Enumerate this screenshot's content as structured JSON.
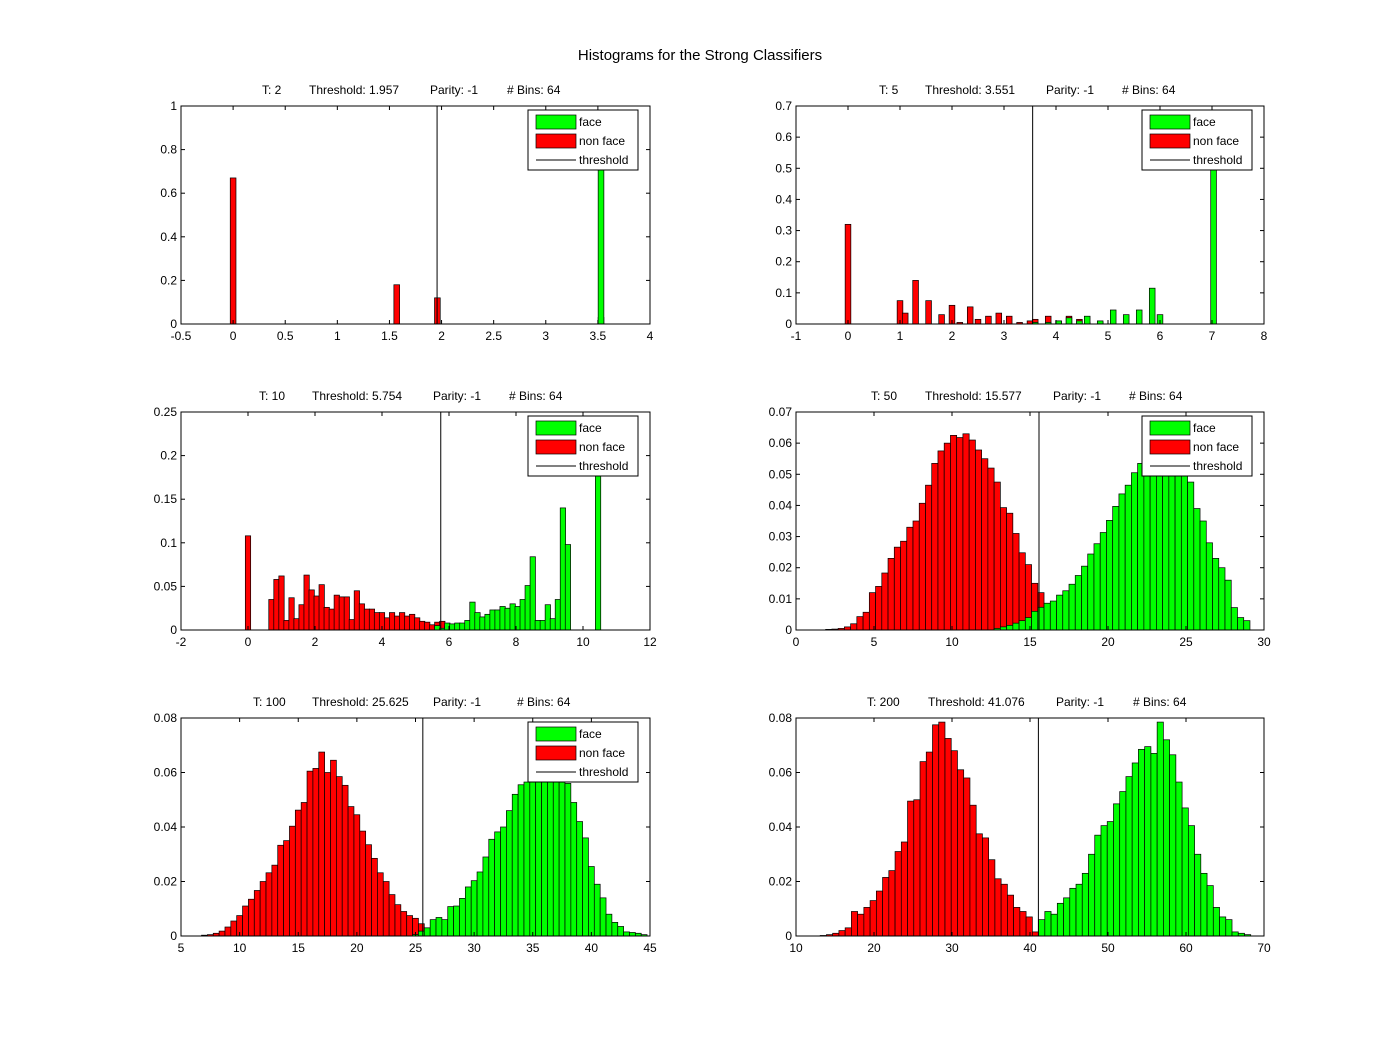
{
  "figure": {
    "title": "Histograms for the Strong Classifiers"
  },
  "legend_labels": [
    "face",
    "non face",
    "threshold"
  ],
  "colors": {
    "face": "#00ff00",
    "non_face": "#ff0000",
    "threshold": "#000000",
    "bar_edge": "#000000"
  },
  "chart_data": [
    {
      "type": "bar",
      "header": {
        "t": "T: 2",
        "threshold": "Threshold: 1.957",
        "parity": "Parity: -1",
        "bins": "# Bins: 64"
      },
      "threshold_value": 1.957,
      "xlim": [
        -0.5,
        4
      ],
      "ylim": [
        0,
        1
      ],
      "xticks": [
        -0.5,
        0,
        0.5,
        1,
        1.5,
        2,
        2.5,
        3,
        3.5,
        4
      ],
      "xtick_labels": [
        "-0.5",
        "0",
        "0.5",
        "1",
        "1.5",
        "2",
        "2.5",
        "3",
        "3.5",
        "4"
      ],
      "yticks": [
        0,
        0.2,
        0.4,
        0.6,
        0.8,
        1
      ],
      "ytick_labels": [
        "0",
        "0.2",
        "0.4",
        "0.6",
        "0.8",
        "1"
      ],
      "legend": true,
      "bin_width": 0.055,
      "series": [
        {
          "name": "non face",
          "x": [
            0,
            1.57,
            1.96,
            3.53
          ],
          "values": [
            0.67,
            0.18,
            0.12,
            0.03
          ]
        },
        {
          "name": "face",
          "x": [
            3.53
          ],
          "values": [
            0.72
          ]
        }
      ]
    },
    {
      "type": "bar",
      "header": {
        "t": "T: 5",
        "threshold": "Threshold: 3.551",
        "parity": "Parity: -1",
        "bins": "# Bins: 64"
      },
      "threshold_value": 3.551,
      "xlim": [
        -1,
        8
      ],
      "ylim": [
        0,
        0.7
      ],
      "xticks": [
        -1,
        0,
        1,
        2,
        3,
        4,
        5,
        6,
        7,
        8
      ],
      "xtick_labels": [
        "-1",
        "0",
        "1",
        "2",
        "3",
        "4",
        "5",
        "6",
        "7",
        "8"
      ],
      "yticks": [
        0,
        0.1,
        0.2,
        0.3,
        0.4,
        0.5,
        0.6,
        0.7
      ],
      "ytick_labels": [
        "0",
        "0.1",
        "0.2",
        "0.3",
        "0.4",
        "0.5",
        "0.6",
        "0.7"
      ],
      "legend": true,
      "bin_width": 0.11,
      "series": [
        {
          "name": "non face",
          "x": [
            0,
            1.0,
            1.1,
            1.3,
            1.55,
            1.8,
            2.0,
            2.15,
            2.35,
            2.5,
            2.7,
            2.9,
            3.1,
            3.3,
            3.5,
            3.6,
            3.85,
            4.05,
            4.25,
            4.45,
            4.6,
            4.85
          ],
          "values": [
            0.32,
            0.075,
            0.035,
            0.14,
            0.075,
            0.03,
            0.06,
            0.005,
            0.055,
            0.015,
            0.025,
            0.035,
            0.025,
            0.005,
            0.01,
            0.015,
            0.025,
            0.01,
            0.025,
            0.015,
            0.005,
            0.005
          ]
        },
        {
          "name": "face",
          "x": [
            3.6,
            3.85,
            4.05,
            4.25,
            4.45,
            4.6,
            4.85,
            5.1,
            5.35,
            5.6,
            5.85,
            6.0,
            7.03
          ],
          "values": [
            0.005,
            0.005,
            0.01,
            0.02,
            0.01,
            0.025,
            0.01,
            0.045,
            0.03,
            0.045,
            0.115,
            0.03,
            0.52
          ]
        }
      ]
    },
    {
      "type": "bar",
      "header": {
        "t": "T: 10",
        "threshold": "Threshold: 5.754",
        "parity": "Parity: -1",
        "bins": "# Bins: 64"
      },
      "threshold_value": 5.754,
      "xlim": [
        -2,
        12
      ],
      "ylim": [
        0,
        0.25
      ],
      "xticks": [
        -2,
        0,
        2,
        4,
        6,
        8,
        10,
        12
      ],
      "xtick_labels": [
        "-2",
        "0",
        "2",
        "4",
        "6",
        "8",
        "10",
        "12"
      ],
      "yticks": [
        0,
        0.05,
        0.1,
        0.15,
        0.2,
        0.25
      ],
      "ytick_labels": [
        "0",
        "0.05",
        "0.1",
        "0.15",
        "0.2",
        "0.25"
      ],
      "legend": true,
      "bin_width": 0.16,
      "series": [
        {
          "name": "non face",
          "x": [
            0,
            0.7,
            0.85,
            1.0,
            1.15,
            1.3,
            1.45,
            1.6,
            1.75,
            1.9,
            2.05,
            2.2,
            2.35,
            2.5,
            2.65,
            2.8,
            2.95,
            3.1,
            3.25,
            3.4,
            3.55,
            3.7,
            3.85,
            4.0,
            4.15,
            4.3,
            4.45,
            4.6,
            4.75,
            4.9,
            5.05,
            5.2,
            5.35,
            5.5,
            5.65,
            5.8,
            5.95,
            6.1,
            6.25
          ],
          "values": [
            0.108,
            0.035,
            0.058,
            0.062,
            0.011,
            0.037,
            0.013,
            0.029,
            0.063,
            0.046,
            0.039,
            0.052,
            0.026,
            0.024,
            0.04,
            0.038,
            0.038,
            0.012,
            0.045,
            0.03,
            0.024,
            0.024,
            0.02,
            0.02,
            0.014,
            0.02,
            0.016,
            0.02,
            0.016,
            0.018,
            0.014,
            0.01,
            0.009,
            0.006,
            0.009,
            0.01,
            0.004,
            0.002,
            0.002
          ]
        },
        {
          "name": "face",
          "x": [
            5.65,
            5.8,
            5.95,
            6.1,
            6.25,
            6.4,
            6.55,
            6.7,
            6.85,
            7.0,
            7.15,
            7.3,
            7.45,
            7.6,
            7.75,
            7.9,
            8.05,
            8.2,
            8.35,
            8.5,
            8.65,
            8.8,
            8.95,
            9.1,
            9.25,
            9.4,
            9.55,
            10.45
          ],
          "values": [
            0.005,
            0.002,
            0.008,
            0.007,
            0.008,
            0.008,
            0.011,
            0.032,
            0.02,
            0.015,
            0.018,
            0.023,
            0.023,
            0.027,
            0.025,
            0.03,
            0.027,
            0.035,
            0.051,
            0.084,
            0.011,
            0.011,
            0.029,
            0.013,
            0.035,
            0.14,
            0.098,
            0.183
          ]
        }
      ]
    },
    {
      "type": "bar",
      "header": {
        "t": "T: 50",
        "threshold": "Threshold: 15.577",
        "parity": "Parity: -1",
        "bins": "# Bins: 64"
      },
      "threshold_value": 15.577,
      "xlim": [
        0,
        30
      ],
      "ylim": [
        0,
        0.07
      ],
      "xticks": [
        0,
        5,
        10,
        15,
        20,
        25,
        30
      ],
      "xtick_labels": [
        "0",
        "5",
        "10",
        "15",
        "20",
        "25",
        "30"
      ],
      "yticks": [
        0,
        0.01,
        0.02,
        0.03,
        0.04,
        0.05,
        0.06,
        0.07
      ],
      "ytick_labels": [
        "0",
        "0.01",
        "0.02",
        "0.03",
        "0.04",
        "0.05",
        "0.06",
        "0.07"
      ],
      "legend": true,
      "bin_width": 0.4,
      "series": [
        {
          "name": "non face",
          "x": [
            2.1,
            2.5,
            2.9,
            3.3,
            3.7,
            4.1,
            4.5,
            4.9,
            5.3,
            5.7,
            6.1,
            6.5,
            6.9,
            7.3,
            7.7,
            8.1,
            8.5,
            8.9,
            9.3,
            9.7,
            10.1,
            10.5,
            10.9,
            11.3,
            11.7,
            12.1,
            12.5,
            12.9,
            13.3,
            13.7,
            14.1,
            14.5,
            14.9,
            15.3,
            15.7,
            16.1,
            16.5,
            16.9,
            17.3
          ],
          "values": [
            0.0002,
            0.0003,
            0.0005,
            0.001,
            0.002,
            0.0043,
            0.0057,
            0.012,
            0.014,
            0.0183,
            0.023,
            0.0266,
            0.0285,
            0.033,
            0.035,
            0.0407,
            0.0465,
            0.0535,
            0.0575,
            0.06,
            0.0625,
            0.0618,
            0.063,
            0.061,
            0.0578,
            0.055,
            0.052,
            0.0475,
            0.0393,
            0.0375,
            0.031,
            0.0248,
            0.021,
            0.015,
            0.012,
            0.007,
            0.005,
            0.002,
            0.0018
          ]
        },
        {
          "name": "face",
          "x": [
            12.9,
            13.3,
            13.7,
            14.1,
            14.5,
            14.9,
            15.3,
            15.7,
            16.1,
            16.5,
            16.9,
            17.3,
            17.7,
            18.1,
            18.5,
            18.9,
            19.3,
            19.7,
            20.1,
            20.5,
            20.9,
            21.3,
            21.7,
            22.1,
            22.5,
            22.9,
            23.3,
            23.7,
            24.1,
            24.5,
            24.9,
            25.3,
            25.7,
            26.1,
            26.5,
            26.9,
            27.3,
            27.7,
            28.1,
            28.5,
            28.9
          ],
          "values": [
            0.0005,
            0.001,
            0.0015,
            0.0022,
            0.003,
            0.004,
            0.006,
            0.0073,
            0.0086,
            0.0093,
            0.0112,
            0.0126,
            0.0147,
            0.0175,
            0.0205,
            0.0244,
            0.0277,
            0.0313,
            0.0352,
            0.0397,
            0.0437,
            0.0465,
            0.0505,
            0.0535,
            0.057,
            0.059,
            0.0605,
            0.058,
            0.0575,
            0.0515,
            0.0505,
            0.0475,
            0.039,
            0.035,
            0.028,
            0.023,
            0.02,
            0.016,
            0.0072,
            0.004,
            0.003
          ]
        }
      ]
    },
    {
      "type": "bar",
      "header": {
        "t": "T: 100",
        "threshold": "Threshold: 25.625",
        "parity": "Parity: -1",
        "bins": "# Bins: 64"
      },
      "threshold_value": 25.625,
      "xlim": [
        5,
        45
      ],
      "ylim": [
        0,
        0.08
      ],
      "xticks": [
        5,
        10,
        15,
        20,
        25,
        30,
        35,
        40,
        45
      ],
      "xtick_labels": [
        "5",
        "10",
        "15",
        "20",
        "25",
        "30",
        "35",
        "40",
        "45"
      ],
      "yticks": [
        0,
        0.02,
        0.04,
        0.06,
        0.08
      ],
      "ytick_labels": [
        "0",
        "0.02",
        "0.04",
        "0.06",
        "0.08"
      ],
      "legend": true,
      "bin_width": 0.5,
      "series": [
        {
          "name": "non face",
          "x": [
            7.0,
            7.5,
            8.0,
            8.5,
            9.0,
            9.5,
            10.0,
            10.5,
            11.0,
            11.5,
            12.0,
            12.5,
            13.0,
            13.5,
            14.0,
            14.5,
            15.0,
            15.5,
            16.0,
            16.5,
            17.0,
            17.5,
            18.0,
            18.5,
            19.0,
            19.5,
            20.0,
            20.5,
            21.0,
            21.5,
            22.0,
            22.5,
            23.0,
            23.5,
            24.0,
            24.5,
            25.0,
            25.5,
            26.0
          ],
          "values": [
            0.0003,
            0.0005,
            0.001,
            0.0018,
            0.0033,
            0.0055,
            0.0075,
            0.011,
            0.0135,
            0.0167,
            0.02,
            0.0232,
            0.026,
            0.0333,
            0.035,
            0.0403,
            0.0462,
            0.049,
            0.0605,
            0.0615,
            0.0675,
            0.06,
            0.0645,
            0.0585,
            0.0553,
            0.0475,
            0.0445,
            0.0385,
            0.0335,
            0.0285,
            0.0232,
            0.02,
            0.0152,
            0.0115,
            0.009,
            0.0075,
            0.0065,
            0.0045,
            0.003
          ]
        },
        {
          "name": "face",
          "x": [
            25.0,
            25.5,
            26.0,
            26.5,
            27.0,
            27.5,
            28.0,
            28.5,
            29.0,
            29.5,
            30.0,
            30.5,
            31.0,
            31.5,
            32.0,
            32.5,
            33.0,
            33.5,
            34.0,
            34.5,
            35.0,
            35.5,
            36.0,
            36.5,
            37.0,
            37.5,
            38.0,
            38.5,
            39.0,
            39.5,
            40.0,
            40.5,
            41.0,
            41.5,
            42.0,
            42.5,
            43.0,
            43.5,
            44.0,
            44.5
          ],
          "values": [
            0.0005,
            0.0018,
            0.003,
            0.006,
            0.0068,
            0.006,
            0.0108,
            0.011,
            0.0138,
            0.018,
            0.0203,
            0.0235,
            0.029,
            0.0355,
            0.0382,
            0.04,
            0.046,
            0.052,
            0.0555,
            0.0565,
            0.0625,
            0.065,
            0.0615,
            0.0635,
            0.064,
            0.058,
            0.056,
            0.049,
            0.042,
            0.036,
            0.0255,
            0.019,
            0.014,
            0.008,
            0.005,
            0.0035,
            0.0015,
            0.0013,
            0.001,
            0.0005
          ]
        }
      ]
    },
    {
      "type": "bar",
      "header": {
        "t": "T: 200",
        "threshold": "Threshold: 41.076",
        "parity": "Parity: -1",
        "bins": "# Bins: 64"
      },
      "threshold_value": 41.076,
      "xlim": [
        10,
        70
      ],
      "ylim": [
        0,
        0.08
      ],
      "xticks": [
        10,
        20,
        30,
        40,
        50,
        60,
        70
      ],
      "xtick_labels": [
        "10",
        "20",
        "30",
        "40",
        "50",
        "60",
        "70"
      ],
      "yticks": [
        0,
        0.02,
        0.04,
        0.06,
        0.08
      ],
      "ytick_labels": [
        "0",
        "0.02",
        "0.04",
        "0.06",
        "0.08"
      ],
      "legend": false,
      "bin_width": 0.8,
      "series": [
        {
          "name": "non face",
          "x": [
            13.5,
            14.3,
            15.1,
            15.9,
            16.7,
            17.5,
            18.3,
            19.1,
            19.9,
            20.7,
            21.5,
            22.3,
            23.1,
            23.9,
            24.7,
            25.5,
            26.3,
            27.1,
            27.9,
            28.7,
            29.5,
            30.3,
            31.1,
            31.9,
            32.7,
            33.5,
            34.3,
            35.1,
            35.9,
            36.7,
            37.5,
            38.3,
            39.1,
            39.9,
            40.7
          ],
          "values": [
            0.0002,
            0.0005,
            0.001,
            0.002,
            0.003,
            0.009,
            0.008,
            0.0105,
            0.013,
            0.0165,
            0.0215,
            0.024,
            0.031,
            0.0345,
            0.0495,
            0.05,
            0.064,
            0.0675,
            0.0775,
            0.0785,
            0.0725,
            0.068,
            0.061,
            0.058,
            0.048,
            0.0375,
            0.036,
            0.028,
            0.021,
            0.019,
            0.015,
            0.0105,
            0.009,
            0.007,
            0.0015
          ]
        },
        {
          "name": "face",
          "x": [
            41.5,
            42.3,
            43.1,
            43.9,
            44.7,
            45.5,
            46.3,
            47.1,
            47.9,
            48.7,
            49.5,
            50.3,
            51.1,
            51.9,
            52.7,
            53.5,
            54.3,
            55.1,
            55.9,
            56.7,
            57.5,
            58.3,
            59.1,
            59.9,
            60.7,
            61.5,
            62.3,
            63.1,
            63.9,
            64.7,
            65.5,
            66.3,
            67.1,
            67.9
          ],
          "values": [
            0.006,
            0.009,
            0.008,
            0.012,
            0.014,
            0.0175,
            0.019,
            0.023,
            0.03,
            0.037,
            0.0405,
            0.042,
            0.0485,
            0.053,
            0.0585,
            0.0635,
            0.0685,
            0.0695,
            0.067,
            0.0785,
            0.072,
            0.0665,
            0.0565,
            0.047,
            0.0405,
            0.03,
            0.023,
            0.0185,
            0.0105,
            0.007,
            0.006,
            0.0015,
            0.001,
            0.0005
          ]
        }
      ]
    }
  ]
}
